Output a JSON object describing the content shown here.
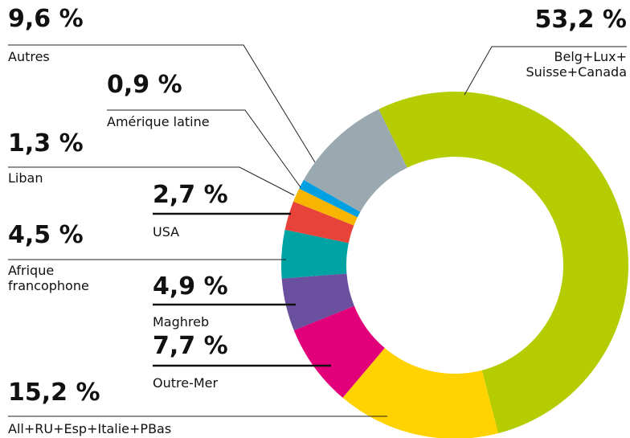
{
  "chart_data": {
    "type": "donut",
    "categories": [
      "Belg+Lux+\nSuisse+Canada",
      "All+RU+Esp+Italie+PBas",
      "Outre-Mer",
      "Maghreb",
      "Afrique\nfrancophone",
      "USA",
      "Liban",
      "Amérique latine",
      "Autres"
    ],
    "values": [
      53.2,
      15.2,
      7.7,
      4.9,
      4.5,
      2.7,
      1.3,
      0.9,
      9.6
    ],
    "value_labels": [
      "53,2 %",
      "15,2 %",
      "7,7 %",
      "4,9 %",
      "4,5 %",
      "2,7 %",
      "1,3 %",
      "0,9 %",
      "9,6 %"
    ],
    "colors": [
      "#b5cc00",
      "#ffd200",
      "#e2007a",
      "#6a509e",
      "#00a3a3",
      "#e8433a",
      "#f7b500",
      "#00a0e3",
      "#9aa8b0"
    ]
  }
}
